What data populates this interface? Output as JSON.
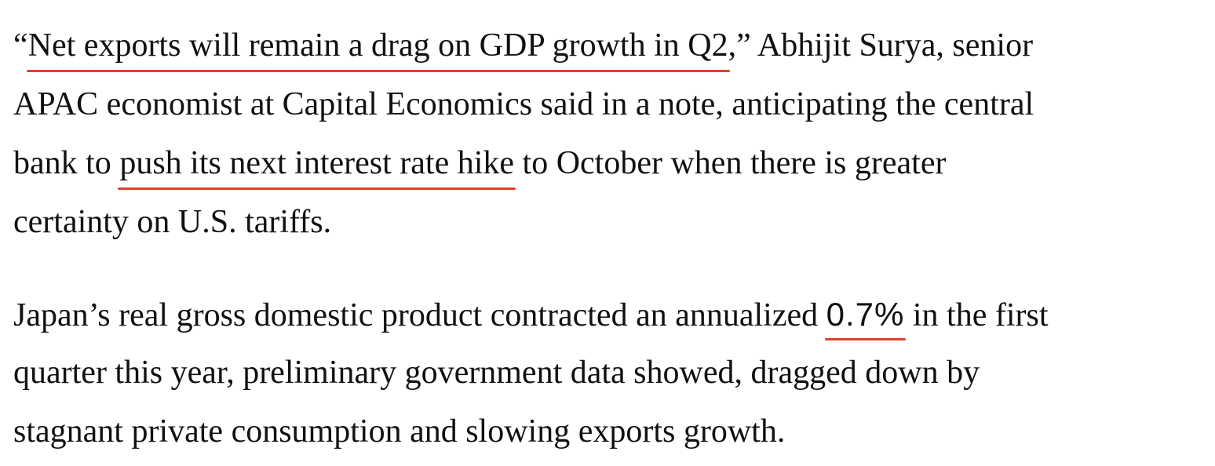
{
  "article": {
    "paragraph1": {
      "lead_quote_open": "“",
      "link_net_exports": "Net exports will remain a drag on GDP growth in Q2",
      "quote_close_rest": ",” Abhijit Surya, senior",
      "line2": "APAC economist at Capital Economics said in a note, anticipating the central",
      "line3_before": "bank to ",
      "link_rate_hike": "push its next interest rate hike",
      "line3_after": " to October when there is greater",
      "line4": "certainty on U.S. tariffs."
    },
    "paragraph2": {
      "line1_before": "Japan’s real gross domestic product contracted an annualized ",
      "link_gdp_figure": "0.7%",
      "line1_after": " in the first",
      "line2": "quarter this year, preliminary government data showed, dragged down by",
      "line3": "stagnant private consumption and slowing exports growth."
    }
  },
  "colors": {
    "text": "#111111",
    "link_underline": "#e0412b",
    "background": "#ffffff"
  }
}
